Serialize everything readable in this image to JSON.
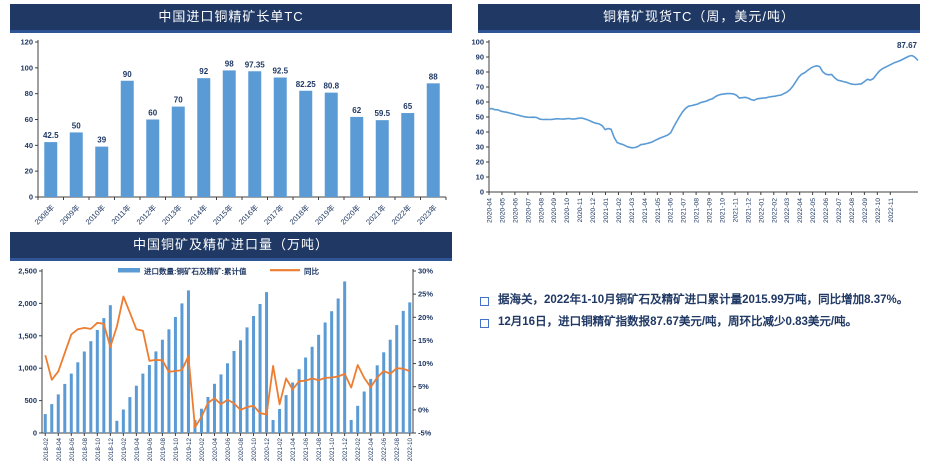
{
  "colors": {
    "header_bg": "#1f3864",
    "header_border": "#2f5597",
    "header_text": "#ffffff",
    "bar_blue": "#5b9bd5",
    "line_blue": "#5b9bd5",
    "line_orange": "#ed7d31",
    "axis": "#404040",
    "tick_text": "#1f3864",
    "note_text": "#203864",
    "bullet_border": "#4472c4"
  },
  "notes": {
    "items": [
      "据海关，2022年1-10月铜矿石及精矿进口累计量2015.99万吨，同比增加8.37%。",
      "12月16日，进口铜精矿指数报87.67美元/吨，周环比减少0.83美元/吨。"
    ]
  },
  "chart_data": [
    {
      "type": "bar",
      "title": "中国进口铜精矿长单TC",
      "categories": [
        "2008年",
        "2009年",
        "2010年",
        "2011年",
        "2012年",
        "2013年",
        "2014年",
        "2015年",
        "2016年",
        "2017年",
        "2018年",
        "2019年",
        "2020年",
        "2021年",
        "2022年",
        "2023年"
      ],
      "values": [
        42.5,
        50,
        39,
        90,
        60,
        70,
        92,
        98,
        97.35,
        92.5,
        82.25,
        80.8,
        62,
        59.5,
        65,
        88
      ],
      "value_labels": [
        "42.5",
        "50",
        "39",
        "90",
        "60",
        "70",
        "92",
        "98",
        "97.35",
        "92.5",
        "82.25",
        "80.8",
        "62",
        "59.5",
        "65",
        "88"
      ],
      "ylim": [
        0,
        120
      ],
      "ytick_step": 20,
      "grid": false,
      "legend": "none"
    },
    {
      "type": "line",
      "title": "铜精矿现货TC（周，美元/吨）",
      "x_month_labels": [
        "2020-04",
        "2020-05",
        "2020-06",
        "2020-07",
        "2020-08",
        "2020-09",
        "2020-10",
        "2020-11",
        "2020-12",
        "2021-01",
        "2021-02",
        "2021-03",
        "2021-04",
        "2021-05",
        "2021-06",
        "2021-07",
        "2021-08",
        "2021-09",
        "2021-10",
        "2021-11",
        "2021-12",
        "2022-01",
        "2022-02",
        "2022-03",
        "2022-04",
        "2022-05",
        "2022-06",
        "2022-07",
        "2022-08",
        "2022-09",
        "2022-10",
        "2022-11"
      ],
      "weeks_per_month": 4.345,
      "values": [
        55.3,
        55.6,
        54.9,
        54.8,
        53.9,
        53.5,
        53.1,
        52.6,
        52.1,
        51.6,
        51.1,
        50.6,
        50.1,
        49.9,
        49.8,
        49.9,
        49.7,
        48.6,
        48.3,
        48.4,
        48.3,
        48.4,
        48.6,
        48.9,
        48.7,
        48.6,
        48.9,
        49.0,
        48.6,
        48.8,
        49.1,
        49.3,
        48.9,
        48.2,
        47.3,
        46.4,
        45.8,
        45.4,
        44.2,
        41.6,
        42.3,
        41.8,
        36.5,
        33.0,
        32.2,
        31.6,
        30.6,
        29.9,
        29.5,
        29.7,
        30.3,
        31.6,
        31.9,
        32.3,
        32.9,
        33.6,
        34.6,
        35.6,
        36.4,
        37.2,
        38.0,
        39.5,
        43.5,
        47.0,
        50.5,
        53.5,
        55.8,
        57.2,
        57.6,
        58.1,
        58.6,
        59.6,
        60.1,
        60.6,
        61.6,
        62.1,
        63.6,
        64.6,
        65.1,
        65.4,
        65.6,
        65.6,
        65.4,
        64.6,
        62.6,
        62.9,
        63.1,
        62.6,
        61.6,
        61.1,
        62.1,
        62.4,
        62.6,
        62.8,
        63.3,
        63.6,
        63.9,
        64.3,
        64.6,
        65.6,
        66.6,
        68.1,
        70.6,
        73.6,
        76.6,
        78.6,
        79.6,
        81.1,
        82.6,
        83.6,
        84.1,
        83.6,
        80.1,
        78.6,
        78.1,
        78.4,
        76.1,
        74.6,
        74.1,
        73.6,
        73.1,
        72.3,
        71.9,
        71.7,
        71.9,
        72.1,
        73.6,
        75.1,
        74.6,
        75.6,
        78.1,
        80.6,
        82.1,
        83.1,
        84.1,
        85.1,
        86.1,
        86.8,
        87.6,
        88.6,
        89.6,
        90.6,
        91.0,
        89.8,
        87.67
      ],
      "ylim": [
        0,
        100
      ],
      "ytick_step": 10,
      "grid": false,
      "annotation": {
        "text": "87.67"
      },
      "legend": "none"
    },
    {
      "type": "bar+line",
      "title": "中国铜矿及精矿进口量（万吨）",
      "categories": [
        "2018-02",
        "2018-03",
        "2018-04",
        "2018-05",
        "2018-06",
        "2018-07",
        "2018-08",
        "2018-09",
        "2018-10",
        "2018-11",
        "2018-12",
        "2019-01",
        "2019-02",
        "2019-03",
        "2019-04",
        "2019-05",
        "2019-06",
        "2019-07",
        "2019-08",
        "2019-09",
        "2019-10",
        "2019-11",
        "2019-12",
        "2020-01",
        "2020-02",
        "2020-03",
        "2020-04",
        "2020-05",
        "2020-06",
        "2020-07",
        "2020-08",
        "2020-09",
        "2020-10",
        "2020-11",
        "2020-12",
        "2021-01",
        "2021-02",
        "2021-03",
        "2021-04",
        "2021-05",
        "2021-06",
        "2021-07",
        "2021-08",
        "2021-09",
        "2021-10",
        "2021-11",
        "2021-12",
        "2022-01",
        "2022-02",
        "2022-03",
        "2022-04",
        "2022-05",
        "2022-06",
        "2022-07",
        "2022-08",
        "2022-09",
        "2022-10"
      ],
      "series": [
        {
          "name": "进口数量:铜矿石及精矿:累计值",
          "kind": "bar",
          "values": [
            292,
            446,
            595,
            758,
            916,
            1091,
            1257,
            1416,
            1590,
            1773,
            1972,
            188,
            362,
            554,
            730,
            916,
            1050,
            1260,
            1440,
            1600,
            1790,
            2000,
            2200,
            200,
            375,
            555,
            760,
            905,
            1075,
            1265,
            1430,
            1630,
            1805,
            1990,
            2175,
            200,
            370,
            585,
            780,
            985,
            1165,
            1330,
            1515,
            1705,
            1880,
            2075,
            2340,
            200,
            420,
            640,
            835,
            1045,
            1245,
            1440,
            1665,
            1885,
            2016
          ]
        },
        {
          "name": "同比",
          "kind": "line",
          "axis": "right",
          "values": [
            11.8,
            6.5,
            8.3,
            12.3,
            16.3,
            17.4,
            17.7,
            17.5,
            18.8,
            18.6,
            13.6,
            18.0,
            24.5,
            21.0,
            17.4,
            17.1,
            10.6,
            10.8,
            10.7,
            8.2,
            8.4,
            8.6,
            11.6,
            -3.8,
            -1.5,
            1.5,
            2.5,
            1.2,
            2.2,
            1.4,
            0.0,
            0.6,
            0.9,
            -0.7,
            -1.0,
            9.5,
            1.2,
            6.8,
            4.4,
            6.2,
            6.3,
            6.8,
            6.4,
            6.9,
            7.0,
            7.2,
            7.8,
            4.8,
            9.7,
            6.9,
            4.9,
            7.0,
            8.4,
            7.8,
            9.0,
            8.9,
            8.37
          ]
        }
      ],
      "left_ylim": [
        0,
        2500
      ],
      "left_tick_labels": [
        "0",
        "500",
        "1,000",
        "1,500",
        "2,000",
        "2,500"
      ],
      "right_ylim": [
        -5,
        30
      ],
      "right_tick_labels": [
        "-5%",
        "0%",
        "5%",
        "10%",
        "15%",
        "20%",
        "25%",
        "30%"
      ],
      "xlabel_every": 2,
      "grid": false,
      "legend_position": "top"
    }
  ]
}
